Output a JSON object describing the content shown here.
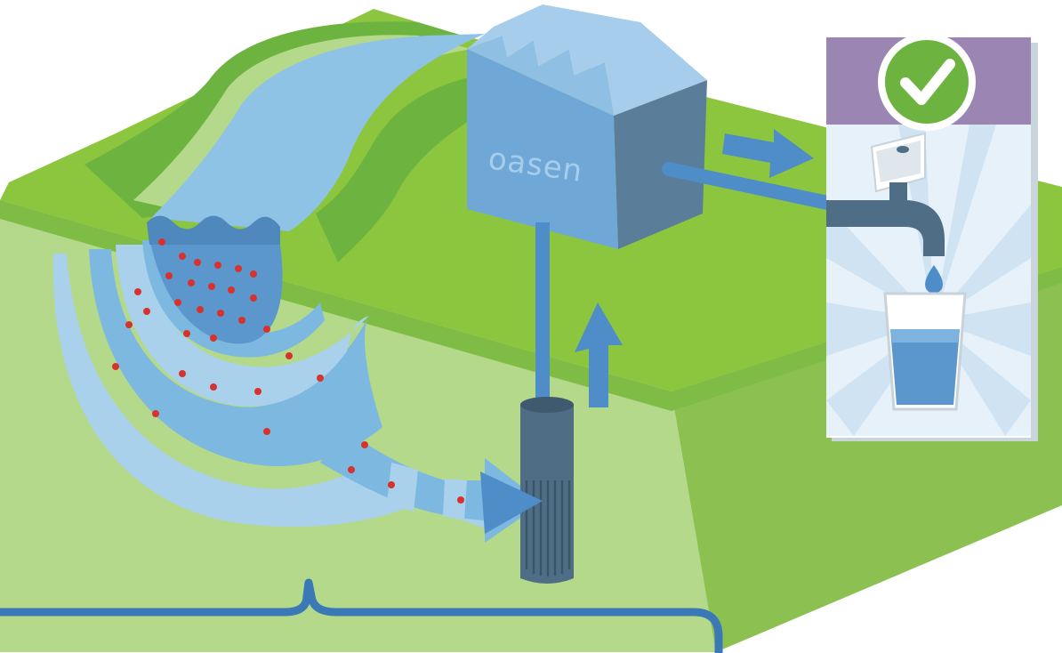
{
  "brand": {
    "name": "oasen"
  },
  "colors": {
    "grass_top": "#8cc63e",
    "grass_dark": "#6db33f",
    "soil_front": "#b5d98a",
    "soil_side": "#8cc152",
    "river_light": "#a9d1ec",
    "river_mid": "#7db8e0",
    "river_deep": "#5b97cc",
    "building_front": "#6fa8d6",
    "building_side": "#5a7d99",
    "building_roof": "#a6cdeb",
    "well_pipe": "#4f6e86",
    "bracket": "#3b79b6",
    "panel_header": "#9b86b3",
    "check_circle": "#6db33f",
    "contaminant": "#d7332e"
  },
  "icons": [
    "check-icon",
    "tap-icon",
    "water-drop-icon",
    "glass-icon",
    "arrow-right-icon",
    "arrow-up-icon"
  ]
}
